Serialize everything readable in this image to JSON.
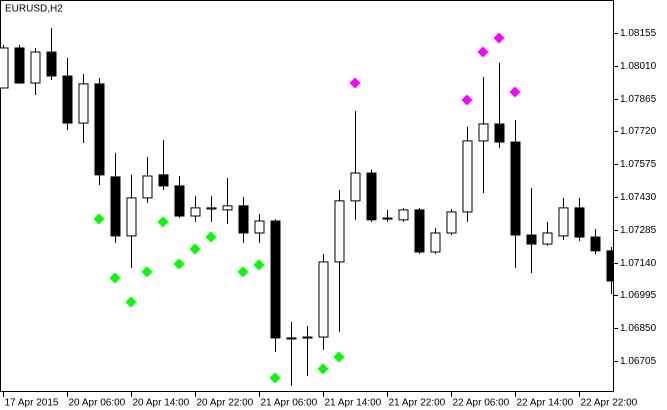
{
  "chart_data": {
    "type": "candlestick",
    "title": "EURUSD,H2",
    "categories": [
      "17 Apr 2015",
      null,
      null,
      null,
      "20 Apr 06:00",
      null,
      null,
      null,
      "20 Apr 14:00",
      null,
      null,
      null,
      "20 Apr 22:00",
      null,
      null,
      null,
      "21 Apr 06:00",
      null,
      null,
      null,
      "21 Apr 14:00",
      null,
      null,
      null,
      "21 Apr 22:00",
      null,
      null,
      null,
      "22 Apr 06:00",
      null,
      null,
      null,
      "22 Apr 14:00",
      null,
      null,
      null,
      "22 Apr 22:00",
      null,
      null
    ],
    "open": [
      1.07912,
      1.08089,
      1.07934,
      1.08071,
      1.07965,
      1.07757,
      1.0793,
      1.07519,
      1.07258,
      1.07426,
      1.07528,
      1.07479,
      1.07346,
      1.07377,
      1.07373,
      1.07391,
      1.07271,
      1.07324,
      1.06807,
      1.06807,
      1.06811,
      1.07143,
      1.07413,
      1.07536,
      1.07337,
      1.07329,
      1.07373,
      1.07187,
      1.07271,
      1.07364,
      1.07678,
      1.07753,
      1.07673,
      1.07262,
      1.07222,
      1.07258,
      1.07382,
      1.07253,
      1.07192
    ],
    "high": [
      1.08102,
      1.08102,
      1.08089,
      1.08177,
      1.08045,
      1.07974,
      1.07956,
      1.07625,
      1.07528,
      1.07607,
      1.07682,
      1.07523,
      1.07435,
      1.07435,
      1.07514,
      1.0743,
      1.07355,
      1.07333,
      1.06878,
      1.0686,
      1.07178,
      1.07461,
      1.0781,
      1.0755,
      1.07373,
      1.07382,
      1.07382,
      1.07293,
      1.07377,
      1.0774,
      1.07961,
      1.08023,
      1.07771,
      1.0747,
      1.0732,
      1.07426,
      1.07426,
      1.07289,
      1.07209
    ],
    "low": [
      1.07912,
      1.0793,
      1.07881,
      1.07947,
      1.07726,
      1.07669,
      1.07483,
      1.07227,
      1.07116,
      1.07404,
      1.07461,
      1.07337,
      1.0732,
      1.0732,
      1.07311,
      1.07227,
      1.07227,
      1.06745,
      1.06595,
      1.06639,
      1.06754,
      1.06834,
      1.07329,
      1.0732,
      1.0732,
      1.0732,
      1.07178,
      1.07178,
      1.07262,
      1.0732,
      1.07448,
      1.07647,
      1.07116,
      1.07094,
      1.07214,
      1.0724,
      1.07236,
      1.07178,
      1.07002
    ],
    "close": [
      1.08089,
      1.07934,
      1.08071,
      1.07965,
      1.07757,
      1.0793,
      1.07528,
      1.07258,
      1.07426,
      1.07523,
      1.07479,
      1.07346,
      1.07382,
      1.07382,
      1.07391,
      1.07271,
      1.07324,
      1.06807,
      1.06807,
      1.06811,
      1.07143,
      1.07413,
      1.07536,
      1.07329,
      1.07337,
      1.07373,
      1.07187,
      1.07271,
      1.07364,
      1.07678,
      1.07753,
      1.07673,
      1.07262,
      1.07222,
      1.07271,
      1.07382,
      1.07253,
      1.07192,
      1.07059
    ],
    "up_color": "#ffffff",
    "down_color": "#000000",
    "line_color": "#000000",
    "markers": [
      {
        "color": "#00ff00",
        "values": [
          null,
          null,
          null,
          null,
          null,
          null,
          1.07333,
          1.07072,
          1.06966,
          1.07099,
          1.0732,
          1.07134,
          1.072,
          1.07253,
          null,
          1.07099,
          1.0713,
          1.0663,
          null,
          null,
          1.0667,
          1.06723,
          null,
          null,
          null,
          null,
          null,
          null,
          null,
          null,
          null,
          null,
          null,
          null,
          null,
          null,
          null,
          null,
          null
        ]
      },
      {
        "color": "#ff00ff",
        "values": [
          null,
          null,
          null,
          null,
          null,
          null,
          null,
          null,
          null,
          null,
          null,
          null,
          null,
          null,
          null,
          null,
          null,
          null,
          null,
          null,
          null,
          null,
          1.07934,
          null,
          null,
          null,
          null,
          null,
          null,
          1.07859,
          1.08071,
          1.08133,
          1.07894,
          null,
          null,
          null,
          null,
          null,
          null
        ]
      }
    ],
    "ylim": [
      1.06568,
      1.08301
    ],
    "yticks": [
      1.08155,
      {
        "value": 1.0801,
        "label": "1.08010"
      },
      1.07865,
      {
        "value": 1.0772,
        "label": "1.07720"
      },
      1.07575,
      {
        "value": 1.0743,
        "label": "1.07430"
      },
      1.07285,
      {
        "value": 1.0714,
        "label": "1.07140"
      },
      1.06995,
      {
        "value": 1.0685,
        "label": "1.06850"
      },
      1.06705
    ],
    "grid": false
  }
}
